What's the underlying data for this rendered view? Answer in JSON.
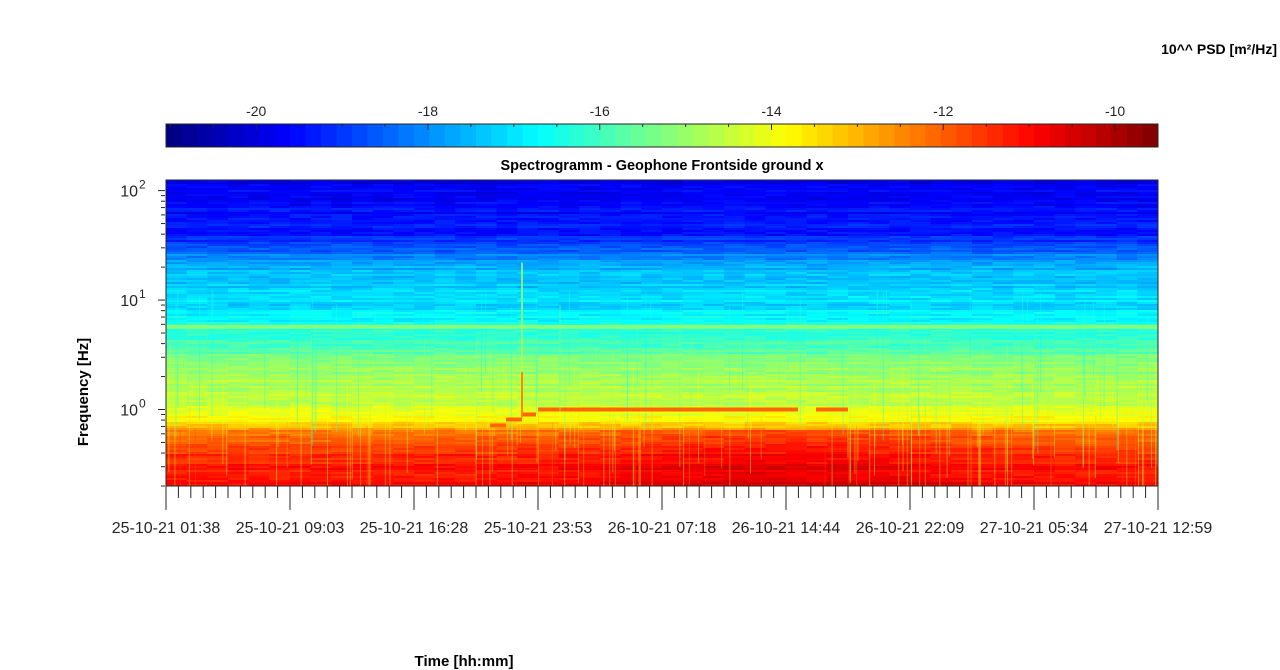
{
  "chart_data": {
    "type": "heatmap",
    "title": "Spectrogramm - Geophone Frontside ground x",
    "xlabel": "Time [hh:mm]",
    "ylabel": "Frequency [Hz]",
    "colorbar": {
      "label": "10^^ PSD [m²/Hz]",
      "ticks": [
        -20,
        -18,
        -16,
        -14,
        -12,
        -10
      ],
      "tick_labels": [
        "-20",
        "-18",
        "-16",
        "-14",
        "-12",
        "-10"
      ],
      "range": [
        -21.05,
        -9.5
      ],
      "colormap": "jet",
      "position": "top"
    },
    "x_ticks": [
      "25-10-21  01:38",
      "25-10-21  09:03",
      "25-10-21  16:28",
      "25-10-21  23:53",
      "26-10-21  07:18",
      "26-10-21  14:44",
      "26-10-21  22:09",
      "27-10-21  05:34",
      "27-10-21  12:59"
    ],
    "y_scale": "log",
    "y_ticks": [
      {
        "value": 1,
        "base": "10",
        "exp": "0"
      },
      {
        "value": 10,
        "base": "10",
        "exp": "1"
      },
      {
        "value": 100,
        "base": "10",
        "exp": "2"
      }
    ],
    "y_range_hz": [
      0.2,
      125
    ],
    "psd_by_frequency": [
      {
        "hz": 0.2,
        "log_psd": -11.0
      },
      {
        "hz": 0.45,
        "log_psd": -11.6
      },
      {
        "hz": 0.65,
        "log_psd": -12.6
      },
      {
        "hz": 0.8,
        "log_psd": -13.9
      },
      {
        "hz": 1.2,
        "log_psd": -14.5
      },
      {
        "hz": 2.5,
        "log_psd": -15.1
      },
      {
        "hz": 5,
        "log_psd": -16.3
      },
      {
        "hz": 8,
        "log_psd": -17.0
      },
      {
        "hz": 20,
        "log_psd": -17.6
      },
      {
        "hz": 40,
        "log_psd": -19.3
      },
      {
        "hz": 125,
        "log_psd": -19.8
      }
    ],
    "features": [
      {
        "kind": "constant-band",
        "hz": 5.7,
        "log_psd": -15.2
      },
      {
        "kind": "step-band",
        "hz": 1.0,
        "log_psd": -12.1,
        "from": "25-10-21  23:53",
        "to": "26-10-21  14:44"
      },
      {
        "kind": "vertical-transient",
        "at": "25-10-21  23:53",
        "log_psd": -12.5
      }
    ]
  }
}
